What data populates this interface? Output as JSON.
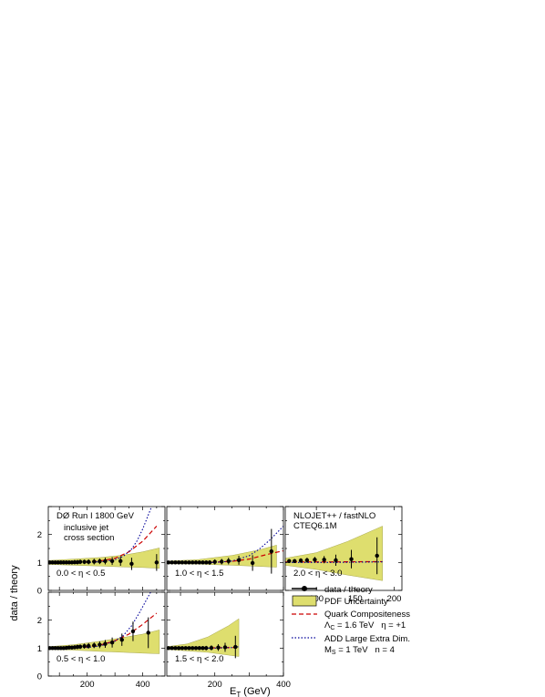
{
  "chart_data": {
    "type": "scatter",
    "ylabel": "data / theory",
    "xlabel": "E",
    "xlabel_subscript": "T",
    "xlabel_unit": "(GeV)",
    "ylim": [
      0,
      3
    ],
    "y_ticks": [
      "0",
      "1",
      "2"
    ],
    "colors": {
      "band": "#dede6e",
      "band_edge": "#a8a850",
      "compositeness": "#cc0000",
      "extra_dim": "#000099",
      "data": "#000000"
    },
    "panels": [
      {
        "id": "p1",
        "eta": "0.0 < η < 0.5",
        "xlim": [
          60,
          480
        ],
        "ticks": [],
        "notes": [
          "DØ Run I  1800 GeV",
          "inclusive jet",
          "cross section"
        ],
        "x": [
          65,
          75,
          85,
          95,
          105,
          115,
          125,
          135,
          145,
          155,
          165,
          175,
          190,
          205,
          225,
          245,
          265,
          290,
          320,
          360,
          450
        ],
        "y": [
          1.0,
          1.0,
          1.0,
          1.0,
          1.0,
          1.0,
          1.0,
          1.0,
          1.0,
          1.01,
          1.01,
          1.02,
          1.02,
          1.02,
          1.03,
          1.04,
          1.05,
          1.05,
          1.05,
          0.95,
          1.0
        ],
        "err": [
          0.07,
          0.07,
          0.07,
          0.07,
          0.07,
          0.07,
          0.07,
          0.07,
          0.07,
          0.08,
          0.08,
          0.08,
          0.08,
          0.09,
          0.1,
          0.1,
          0.12,
          0.14,
          0.17,
          0.22,
          0.3
        ],
        "band_x": [
          60,
          150,
          250,
          330,
          400,
          460
        ],
        "band_lo": [
          0.93,
          0.9,
          0.87,
          0.84,
          0.82,
          0.79
        ],
        "band_hi": [
          1.07,
          1.12,
          1.18,
          1.26,
          1.38,
          1.52
        ],
        "qc_x": [
          60,
          150,
          200,
          250,
          300,
          350,
          400,
          450
        ],
        "qc_y": [
          1.0,
          1.0,
          1.02,
          1.06,
          1.15,
          1.38,
          1.76,
          2.3
        ],
        "add_x": [
          60,
          200,
          260,
          300,
          330,
          360,
          380,
          400,
          420,
          440
        ],
        "add_y": [
          1.0,
          1.0,
          1.03,
          1.1,
          1.22,
          1.48,
          1.78,
          2.2,
          2.7,
          3.2
        ]
      },
      {
        "id": "p2",
        "eta": "1.0 < η < 1.5",
        "xlim": [
          60,
          400
        ],
        "ticks": [],
        "notes": [],
        "x": [
          65,
          75,
          85,
          95,
          105,
          115,
          125,
          135,
          145,
          155,
          165,
          175,
          185,
          200,
          220,
          240,
          270,
          310,
          365
        ],
        "y": [
          1.0,
          1.0,
          1.0,
          1.0,
          1.0,
          1.0,
          1.0,
          1.0,
          1.0,
          1.0,
          1.0,
          1.0,
          1.0,
          1.02,
          1.03,
          1.05,
          1.08,
          0.98,
          1.4
        ],
        "err": [
          0.06,
          0.06,
          0.06,
          0.06,
          0.06,
          0.06,
          0.06,
          0.06,
          0.07,
          0.07,
          0.07,
          0.07,
          0.08,
          0.09,
          0.1,
          0.12,
          0.16,
          0.28,
          0.8
        ],
        "band_x": [
          60,
          150,
          250,
          330,
          380
        ],
        "band_lo": [
          0.95,
          0.94,
          0.9,
          0.86,
          0.83
        ],
        "band_hi": [
          1.05,
          1.1,
          1.25,
          1.45,
          1.62
        ],
        "qc_x": [
          60,
          150,
          200,
          250,
          300,
          350,
          400
        ],
        "qc_y": [
          1.0,
          1.0,
          1.01,
          1.04,
          1.12,
          1.28,
          1.42
        ],
        "add_x": [
          60,
          200,
          250,
          300,
          330,
          360,
          400
        ],
        "add_y": [
          1.0,
          1.0,
          1.05,
          1.24,
          1.48,
          1.8,
          2.3
        ]
      },
      {
        "id": "p3",
        "eta": "2.0 < η < 3.0",
        "xlim": [
          60,
          210
        ],
        "ticks": [
          "100",
          "150",
          "200"
        ],
        "notes": [
          "NLOJET++ / fastNLO",
          "CTEQ6.1M"
        ],
        "x": [
          65,
          72,
          80,
          88,
          98,
          110,
          125,
          145,
          178
        ],
        "y": [
          1.05,
          1.05,
          1.07,
          1.08,
          1.1,
          1.1,
          1.08,
          1.12,
          1.24
        ],
        "err": [
          0.07,
          0.07,
          0.08,
          0.09,
          0.1,
          0.13,
          0.2,
          0.33,
          0.66
        ],
        "band_x": [
          60,
          100,
          140,
          185
        ],
        "band_lo": [
          0.9,
          0.75,
          0.55,
          0.35
        ],
        "band_hi": [
          1.15,
          1.35,
          1.75,
          2.3
        ],
        "qc_x": [
          60,
          120,
          185
        ],
        "qc_y": [
          1.02,
          1.02,
          1.03
        ],
        "add_x": [
          60,
          120,
          185
        ],
        "add_y": [
          1.0,
          1.0,
          1.02
        ]
      },
      {
        "id": "p4",
        "eta": "0.5 < η < 1.0",
        "xlim": [
          60,
          480
        ],
        "ticks": [
          "200",
          "400"
        ],
        "notes": [],
        "x": [
          65,
          75,
          85,
          95,
          105,
          115,
          125,
          135,
          145,
          155,
          165,
          175,
          190,
          205,
          225,
          245,
          265,
          290,
          325,
          365,
          420
        ],
        "y": [
          1.0,
          1.0,
          1.0,
          1.0,
          1.0,
          1.0,
          1.01,
          1.02,
          1.02,
          1.03,
          1.04,
          1.05,
          1.07,
          1.08,
          1.1,
          1.12,
          1.15,
          1.2,
          1.3,
          1.6,
          1.55
        ],
        "err": [
          0.05,
          0.05,
          0.05,
          0.05,
          0.05,
          0.06,
          0.06,
          0.06,
          0.07,
          0.07,
          0.08,
          0.08,
          0.09,
          0.1,
          0.1,
          0.12,
          0.14,
          0.18,
          0.22,
          0.35,
          0.55
        ],
        "band_x": [
          60,
          150,
          250,
          330,
          400,
          460
        ],
        "band_lo": [
          0.95,
          0.93,
          0.88,
          0.85,
          0.82,
          0.8
        ],
        "band_hi": [
          1.05,
          1.12,
          1.25,
          1.38,
          1.5,
          1.65
        ],
        "qc_x": [
          60,
          150,
          200,
          250,
          300,
          350,
          400,
          450
        ],
        "qc_y": [
          1.0,
          1.01,
          1.04,
          1.12,
          1.26,
          1.5,
          1.85,
          2.25
        ],
        "add_x": [
          60,
          200,
          250,
          300,
          330,
          360,
          390,
          420,
          445
        ],
        "add_y": [
          1.0,
          1.02,
          1.08,
          1.25,
          1.45,
          1.8,
          2.3,
          2.85,
          3.3
        ]
      },
      {
        "id": "p5",
        "eta": "1.5 < η < 2.0",
        "xlim": [
          60,
          400
        ],
        "ticks": [
          "200",
          "400"
        ],
        "notes": [],
        "x": [
          65,
          75,
          85,
          95,
          105,
          115,
          125,
          135,
          145,
          155,
          165,
          175,
          190,
          210,
          230,
          260
        ],
        "y": [
          1.0,
          1.0,
          1.0,
          1.0,
          1.0,
          1.0,
          1.0,
          1.0,
          1.0,
          1.0,
          1.0,
          1.0,
          1.01,
          1.02,
          1.03,
          1.04
        ],
        "err": [
          0.05,
          0.05,
          0.05,
          0.05,
          0.05,
          0.05,
          0.06,
          0.06,
          0.06,
          0.07,
          0.07,
          0.08,
          0.09,
          0.12,
          0.16,
          0.4
        ],
        "band_x": [
          60,
          120,
          180,
          240,
          270
        ],
        "band_lo": [
          0.95,
          0.9,
          0.85,
          0.75,
          0.7
        ],
        "band_hi": [
          1.05,
          1.15,
          1.4,
          1.8,
          2.05
        ],
        "qc_x": [
          60,
          150,
          200,
          250,
          270
        ],
        "qc_y": [
          1.0,
          1.0,
          1.01,
          1.02,
          1.03
        ],
        "add_x": [
          60,
          150,
          200,
          250,
          270
        ],
        "add_y": [
          1.0,
          1.0,
          1.0,
          1.02,
          1.05
        ]
      }
    ],
    "legend": {
      "data_label": "data / theory",
      "pdf_label": "PDF Uncertainty",
      "qc_label": "Quark Compositeness",
      "qc_lambda": "Λ",
      "qc_lambda_sub": "C",
      "qc_params": " = 1.6 TeV   η = +1",
      "add_label": "ADD Large Extra Dim.",
      "add_ms": "M",
      "add_ms_sub": "S",
      "add_params": " = 1 TeV   n = 4"
    }
  }
}
